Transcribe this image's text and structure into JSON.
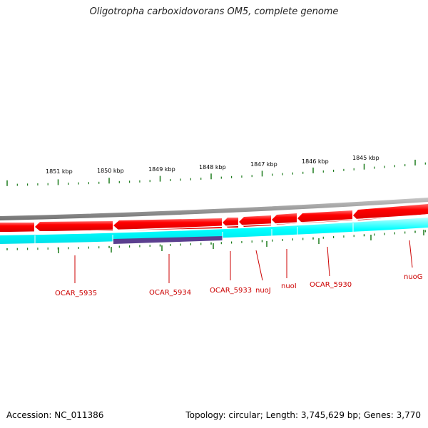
{
  "title": "Oligotropha carboxidovorans OM5, complete genome",
  "footer": {
    "accession": "Accession: NC_011386",
    "summary": "Topology: circular; Length: 3,745,629 bp; Genes: 3,770"
  },
  "scale_labels": [
    "1851 kbp",
    "1850 kbp",
    "1849 kbp",
    "1848 kbp",
    "1847 kbp",
    "1846 kbp",
    "1845 kbp"
  ],
  "gene_labels": [
    "OCAR_5935",
    "OCAR_5934",
    "OCAR_5933",
    "nuoJ",
    "nuoI",
    "OCAR_5930",
    "nuoG"
  ],
  "colors": {
    "backbone": "#808080",
    "forward_genes": "#ff0000",
    "reverse_track": "#00ffff",
    "highlight_gene": "#5b3f8f",
    "ticks": "#1a7a1a",
    "labels": "#cc0000"
  }
}
